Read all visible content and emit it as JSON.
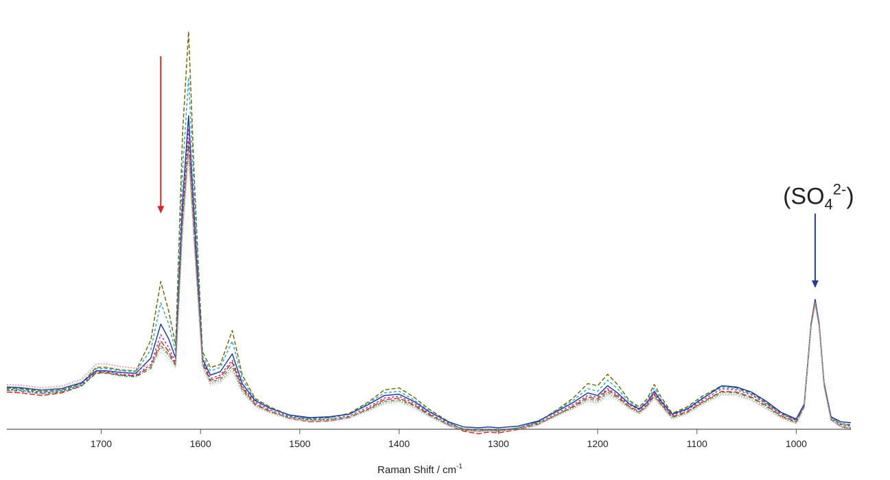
{
  "chart_data": {
    "type": "line",
    "xlabel": "Raman Shift / cm",
    "xlabel_sup": "-1",
    "x_reversed": true,
    "xlim": [
      1795,
      945
    ],
    "ylim": [
      0,
      1
    ],
    "x_ticks": [
      1700,
      1600,
      1500,
      1400,
      1300,
      1200,
      1100,
      1000
    ],
    "x_tick_labels": [
      "1700",
      "1600",
      "1500",
      "1400",
      "1300",
      "1200",
      "1100",
      "1000"
    ],
    "grid": false,
    "legend": false,
    "annotations": [
      {
        "kind": "arrow",
        "x": 1640,
        "color": "#d62728",
        "y_from": 0.9,
        "y_to": 0.53
      },
      {
        "kind": "arrow",
        "x": 981,
        "color": "#1f3d99",
        "y_from": 0.53,
        "y_to": 0.355,
        "label": "(SO4",
        "label_sub": "4",
        "label_base": "(SO",
        "label_sup": "2-",
        "label_end": ")"
      }
    ],
    "x": [
      1795,
      1780,
      1760,
      1740,
      1720,
      1705,
      1695,
      1680,
      1665,
      1650,
      1640,
      1632,
      1625,
      1618,
      1612,
      1606,
      1598,
      1590,
      1580,
      1568,
      1558,
      1545,
      1530,
      1510,
      1490,
      1470,
      1450,
      1430,
      1415,
      1400,
      1385,
      1370,
      1350,
      1335,
      1320,
      1310,
      1300,
      1280,
      1260,
      1240,
      1225,
      1210,
      1200,
      1190,
      1180,
      1168,
      1158,
      1150,
      1143,
      1136,
      1125,
      1110,
      1095,
      1075,
      1060,
      1045,
      1030,
      1015,
      1000,
      992,
      985,
      981,
      977,
      972,
      965,
      955,
      945
    ],
    "series": [
      {
        "color": "#6b6b00",
        "dash": "6,3",
        "values": [
          0.12,
          0.118,
          0.112,
          0.115,
          0.13,
          0.168,
          0.168,
          0.162,
          0.16,
          0.232,
          0.37,
          0.3,
          0.22,
          0.72,
          0.958,
          0.6,
          0.205,
          0.168,
          0.175,
          0.255,
          0.15,
          0.095,
          0.075,
          0.055,
          0.048,
          0.05,
          0.06,
          0.088,
          0.115,
          0.12,
          0.098,
          0.07,
          0.04,
          0.02,
          0.018,
          0.02,
          0.018,
          0.025,
          0.04,
          0.07,
          0.095,
          0.13,
          0.125,
          0.152,
          0.128,
          0.09,
          0.075,
          0.095,
          0.128,
          0.098,
          0.06,
          0.075,
          0.1,
          0.125,
          0.12,
          0.108,
          0.085,
          0.06,
          0.045,
          0.08,
          0.27,
          0.325,
          0.27,
          0.13,
          0.05,
          0.035,
          0.032
        ]
      },
      {
        "color": "#2ca7c9",
        "dash": "4,3",
        "values": [
          0.118,
          0.116,
          0.11,
          0.114,
          0.128,
          0.165,
          0.165,
          0.16,
          0.158,
          0.21,
          0.32,
          0.27,
          0.205,
          0.63,
          0.85,
          0.56,
          0.195,
          0.16,
          0.168,
          0.23,
          0.14,
          0.092,
          0.073,
          0.054,
          0.047,
          0.049,
          0.058,
          0.085,
          0.108,
          0.112,
          0.092,
          0.066,
          0.038,
          0.022,
          0.018,
          0.021,
          0.019,
          0.026,
          0.04,
          0.068,
          0.09,
          0.118,
          0.112,
          0.138,
          0.118,
          0.086,
          0.072,
          0.09,
          0.12,
          0.092,
          0.058,
          0.072,
          0.096,
          0.122,
          0.118,
          0.105,
          0.083,
          0.058,
          0.044,
          0.08,
          0.27,
          0.325,
          0.27,
          0.13,
          0.05,
          0.036,
          0.034
        ]
      },
      {
        "color": "#1f3d99",
        "dash": "",
        "values": [
          0.122,
          0.12,
          0.115,
          0.118,
          0.132,
          0.16,
          0.16,
          0.156,
          0.154,
          0.19,
          0.27,
          0.235,
          0.19,
          0.56,
          0.76,
          0.51,
          0.188,
          0.15,
          0.158,
          0.2,
          0.13,
          0.09,
          0.072,
          0.056,
          0.05,
          0.052,
          0.058,
          0.082,
          0.102,
          0.105,
          0.088,
          0.064,
          0.04,
          0.028,
          0.026,
          0.028,
          0.026,
          0.03,
          0.042,
          0.066,
          0.085,
          0.108,
          0.102,
          0.125,
          0.108,
          0.082,
          0.07,
          0.086,
          0.112,
          0.088,
          0.058,
          0.07,
          0.094,
          0.125,
          0.122,
          0.11,
          0.088,
          0.062,
          0.047,
          0.082,
          0.272,
          0.328,
          0.272,
          0.132,
          0.052,
          0.04,
          0.038
        ]
      },
      {
        "color": "#d62728",
        "dash": "8,3",
        "values": [
          0.11,
          0.108,
          0.102,
          0.108,
          0.124,
          0.156,
          0.156,
          0.15,
          0.148,
          0.17,
          0.23,
          0.205,
          0.175,
          0.52,
          0.7,
          0.47,
          0.18,
          0.138,
          0.145,
          0.18,
          0.12,
          0.082,
          0.065,
          0.048,
          0.04,
          0.042,
          0.05,
          0.072,
          0.092,
          0.096,
          0.08,
          0.058,
          0.032,
          0.018,
          0.012,
          0.016,
          0.014,
          0.022,
          0.034,
          0.058,
          0.076,
          0.098,
          0.094,
          0.115,
          0.1,
          0.076,
          0.064,
          0.08,
          0.105,
          0.082,
          0.052,
          0.064,
          0.086,
          0.112,
          0.11,
          0.098,
          0.078,
          0.054,
          0.04,
          0.076,
          0.268,
          0.322,
          0.268,
          0.128,
          0.046,
          0.028,
          0.024
        ]
      },
      {
        "color": "#9b30b5",
        "dash": "3,3",
        "values": [
          0.116,
          0.114,
          0.108,
          0.112,
          0.126,
          0.158,
          0.158,
          0.152,
          0.15,
          0.175,
          0.245,
          0.215,
          0.18,
          0.54,
          0.73,
          0.49,
          0.184,
          0.142,
          0.15,
          0.185,
          0.124,
          0.086,
          0.068,
          0.052,
          0.045,
          0.046,
          0.054,
          0.076,
          0.096,
          0.1,
          0.084,
          0.06,
          0.036,
          0.022,
          0.018,
          0.02,
          0.018,
          0.026,
          0.038,
          0.062,
          0.08,
          0.102,
          0.098,
          0.118,
          0.104,
          0.08,
          0.068,
          0.084,
          0.108,
          0.085,
          0.055,
          0.068,
          0.09,
          0.118,
          0.115,
          0.103,
          0.082,
          0.058,
          0.043,
          0.079,
          0.27,
          0.325,
          0.27,
          0.13,
          0.049,
          0.033,
          0.03
        ]
      },
      {
        "color": "#2e9e3e",
        "dash": "5,2,1,2",
        "values": [
          0.114,
          0.112,
          0.106,
          0.11,
          0.124,
          0.154,
          0.154,
          0.148,
          0.146,
          0.165,
          0.22,
          0.198,
          0.172,
          0.505,
          0.69,
          0.46,
          0.176,
          0.134,
          0.14,
          0.172,
          0.116,
          0.08,
          0.064,
          0.05,
          0.044,
          0.045,
          0.052,
          0.07,
          0.088,
          0.092,
          0.078,
          0.056,
          0.034,
          0.024,
          0.02,
          0.022,
          0.02,
          0.026,
          0.036,
          0.058,
          0.074,
          0.094,
          0.09,
          0.11,
          0.097,
          0.074,
          0.062,
          0.078,
          0.1,
          0.08,
          0.05,
          0.062,
          0.084,
          0.11,
          0.108,
          0.096,
          0.076,
          0.052,
          0.038,
          0.075,
          0.266,
          0.32,
          0.266,
          0.126,
          0.045,
          0.03,
          0.026
        ]
      },
      {
        "color": "#e8899a",
        "dash": "2,2",
        "values": [
          0.128,
          0.126,
          0.12,
          0.124,
          0.14,
          0.176,
          0.176,
          0.17,
          0.166,
          0.175,
          0.215,
          0.195,
          0.17,
          0.495,
          0.675,
          0.45,
          0.172,
          0.13,
          0.136,
          0.165,
          0.112,
          0.078,
          0.062,
          0.048,
          0.042,
          0.043,
          0.05,
          0.068,
          0.085,
          0.089,
          0.075,
          0.054,
          0.032,
          0.022,
          0.018,
          0.02,
          0.018,
          0.024,
          0.034,
          0.056,
          0.072,
          0.09,
          0.086,
          0.106,
          0.094,
          0.072,
          0.06,
          0.076,
          0.098,
          0.078,
          0.048,
          0.06,
          0.082,
          0.106,
          0.104,
          0.092,
          0.072,
          0.05,
          0.036,
          0.074,
          0.264,
          0.318,
          0.264,
          0.124,
          0.044,
          0.029,
          0.025
        ]
      },
      {
        "color": "#8fd1a4",
        "dash": "1,2",
        "values": [
          0.124,
          0.122,
          0.116,
          0.12,
          0.136,
          0.17,
          0.17,
          0.164,
          0.16,
          0.17,
          0.205,
          0.188,
          0.166,
          0.48,
          0.66,
          0.44,
          0.168,
          0.126,
          0.132,
          0.16,
          0.108,
          0.076,
          0.06,
          0.046,
          0.04,
          0.041,
          0.048,
          0.066,
          0.082,
          0.086,
          0.072,
          0.052,
          0.03,
          0.02,
          0.016,
          0.018,
          0.016,
          0.022,
          0.032,
          0.054,
          0.07,
          0.087,
          0.083,
          0.102,
          0.09,
          0.07,
          0.058,
          0.074,
          0.095,
          0.076,
          0.046,
          0.058,
          0.08,
          0.103,
          0.101,
          0.09,
          0.07,
          0.048,
          0.035,
          0.073,
          0.262,
          0.316,
          0.262,
          0.122,
          0.043,
          0.028,
          0.024
        ]
      }
    ]
  }
}
